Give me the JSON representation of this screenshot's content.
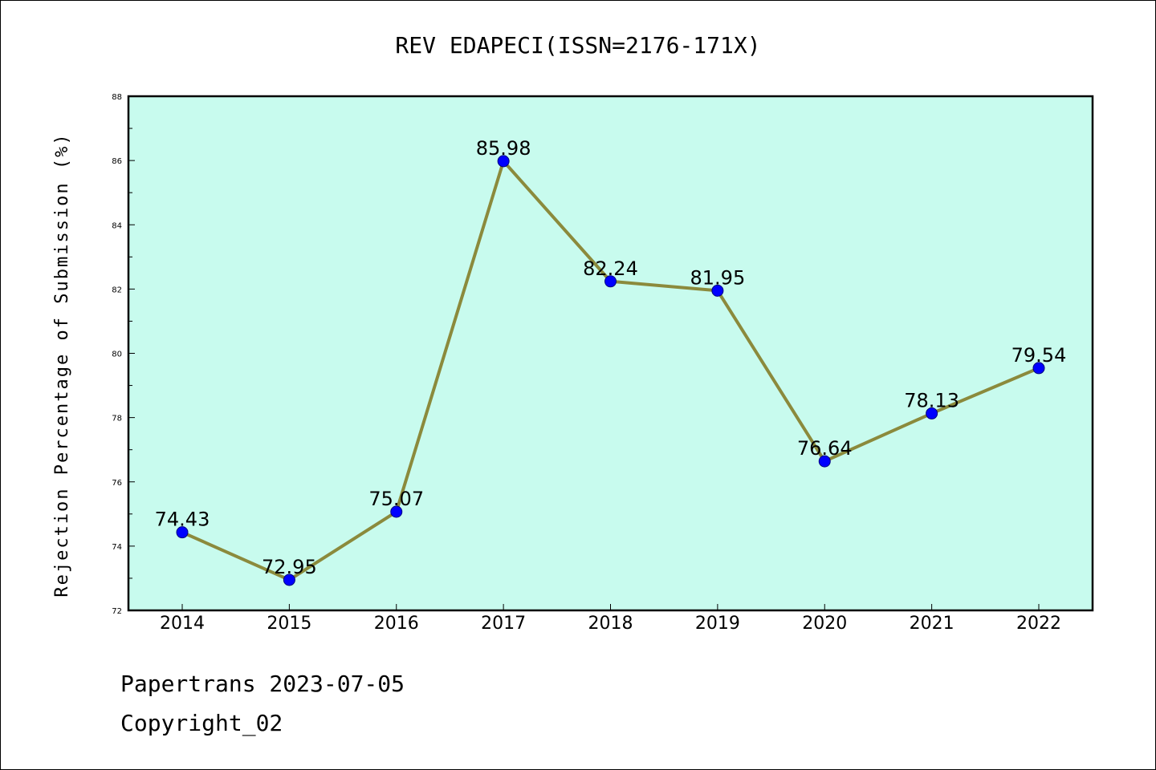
{
  "chart_data": {
    "type": "line",
    "title": "REV EDAPECI(ISSN=2176-171X)",
    "xlabel": "",
    "ylabel": "Rejection Percentage of Submission (%)",
    "categories": [
      "2014",
      "2015",
      "2016",
      "2017",
      "2018",
      "2019",
      "2020",
      "2021",
      "2022"
    ],
    "values": [
      74.43,
      72.95,
      75.07,
      85.98,
      82.24,
      81.95,
      76.64,
      78.13,
      79.54
    ],
    "data_labels": [
      "74.43",
      "72.95",
      "75.07",
      "85.98",
      "82.24",
      "81.95",
      "76.64",
      "78.13",
      "79.54"
    ],
    "ylim": [
      72,
      88
    ],
    "yticks": [
      "72",
      "74",
      "76",
      "78",
      "80",
      "82",
      "84",
      "86",
      "88"
    ],
    "grid": false,
    "legend": "none",
    "colors": {
      "plot_background": "#c8fbee",
      "line": "#8b8a3c",
      "marker": "#0000ff"
    }
  },
  "footer": {
    "line1": "Papertrans 2023-07-05",
    "line2": "Copyright_02"
  }
}
